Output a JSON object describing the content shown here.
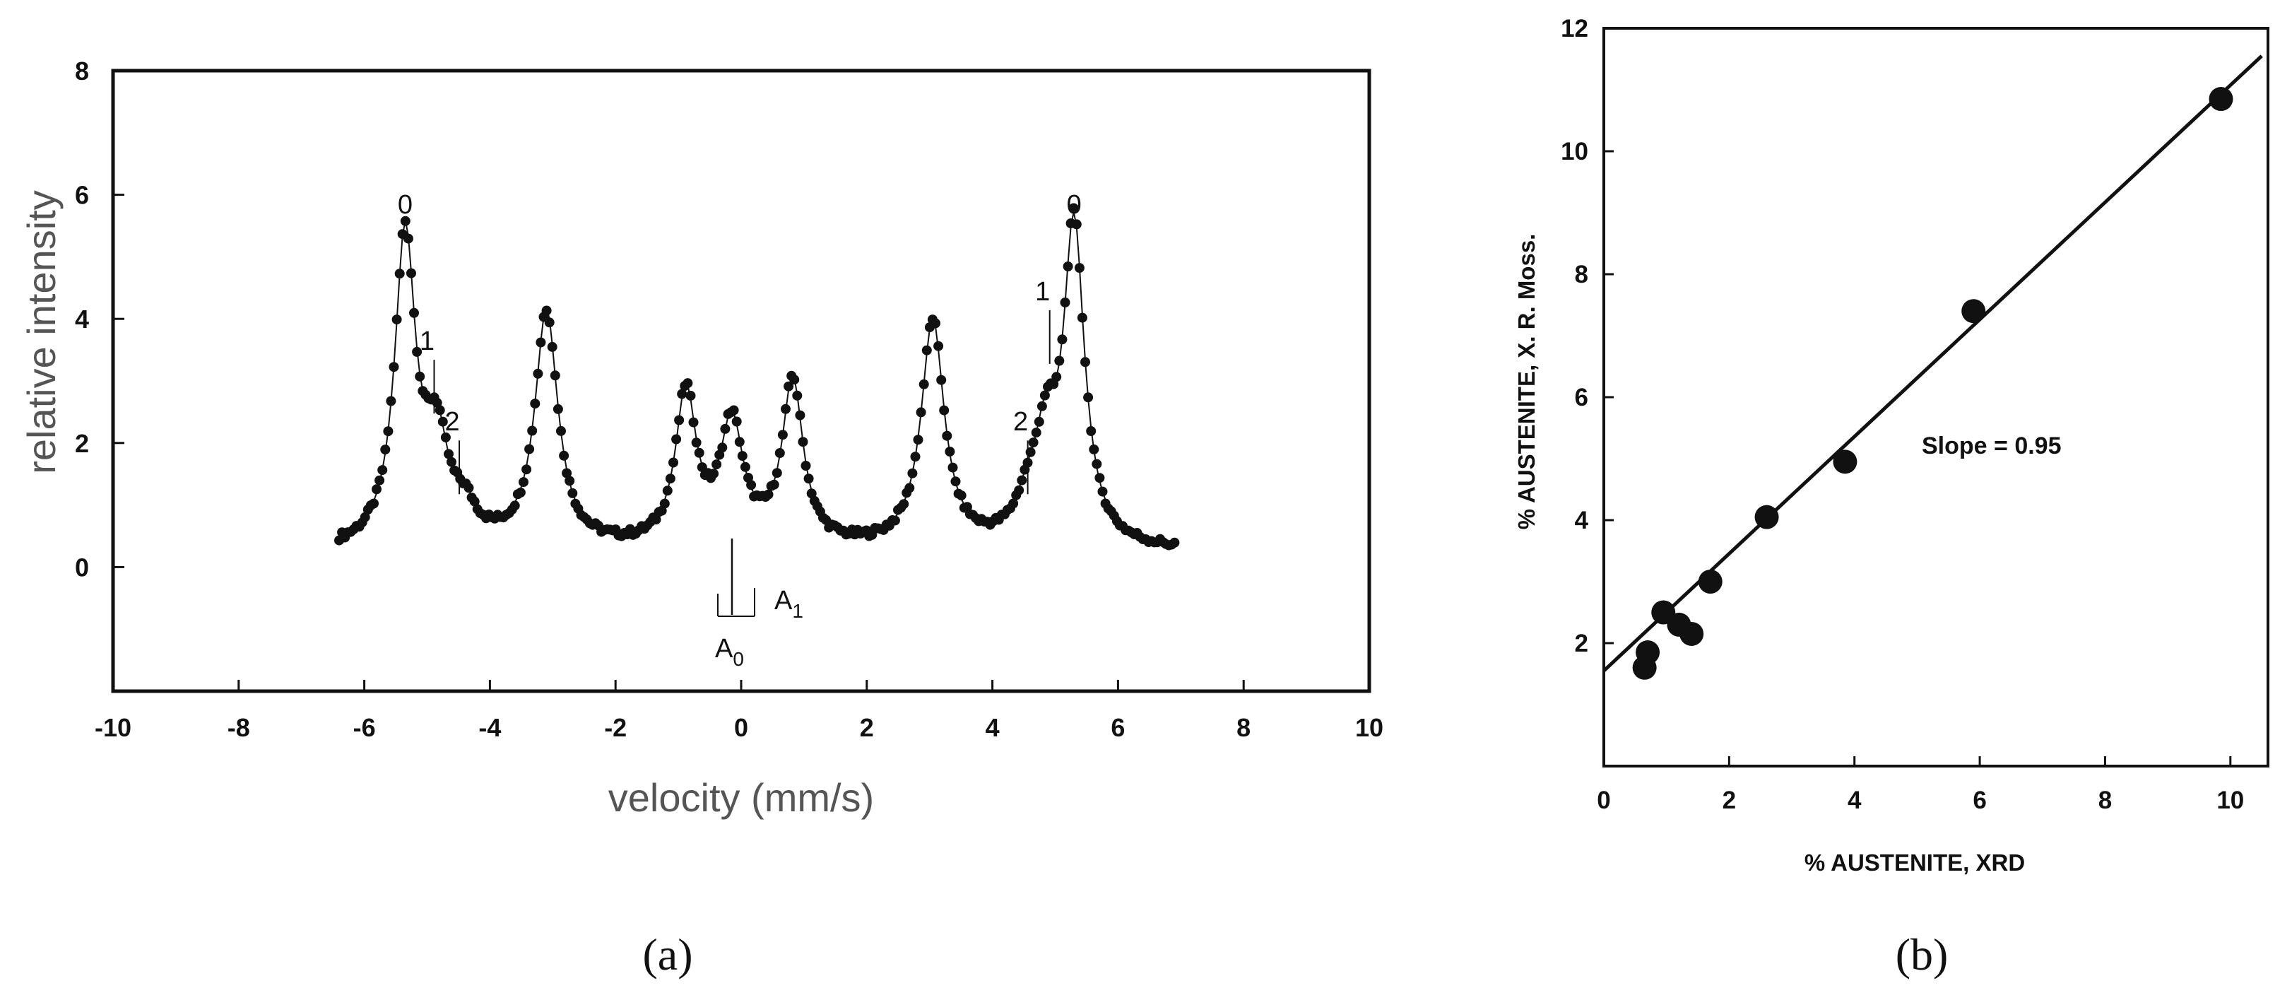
{
  "chart_data": [
    {
      "type": "scatter",
      "title": "",
      "xlabel": "velocity (mm/s)",
      "ylabel": "relative intensity",
      "xlim": [
        -10,
        10
      ],
      "ylim": [
        -2,
        8
      ],
      "xticks": [
        "-10",
        "-8",
        "-6",
        "-4",
        "-2",
        "0",
        "2",
        "4",
        "6",
        "8",
        "10"
      ],
      "yticks": [
        "0",
        "2",
        "4",
        "6",
        "8"
      ],
      "peaks": [
        {
          "center": -5.35,
          "amplitude": 5.0,
          "width": 0.2
        },
        {
          "center": -4.85,
          "amplitude": 1.6,
          "width": 0.22
        },
        {
          "center": -4.4,
          "amplitude": 0.45,
          "width": 0.22
        },
        {
          "center": -3.1,
          "amplitude": 3.8,
          "width": 0.22
        },
        {
          "center": -0.88,
          "amplitude": 2.45,
          "width": 0.2
        },
        {
          "center": -0.15,
          "amplitude": 1.95,
          "width": 0.22
        },
        {
          "center": 0.82,
          "amplitude": 2.65,
          "width": 0.2
        },
        {
          "center": 3.05,
          "amplitude": 3.65,
          "width": 0.22
        },
        {
          "center": 4.55,
          "amplitude": 0.45,
          "width": 0.22
        },
        {
          "center": 4.85,
          "amplitude": 1.5,
          "width": 0.22
        },
        {
          "center": 5.3,
          "amplitude": 5.1,
          "width": 0.2
        }
      ],
      "baseline": 0.25,
      "velocity_range": [
        -6.4,
        6.9
      ],
      "annotations": [
        {
          "text": "0",
          "x": -5.35,
          "y": 5.7
        },
        {
          "text": "1",
          "x": -5.0,
          "y": 3.5
        },
        {
          "text": "2",
          "x": -4.6,
          "y": 2.2
        },
        {
          "text": "1",
          "x": 4.8,
          "y": 4.3
        },
        {
          "text": "2",
          "x": 4.45,
          "y": 2.2
        },
        {
          "text": "0",
          "x": 5.3,
          "y": 5.7
        }
      ],
      "marker_label_a0": "A",
      "marker_label_a0_sub": "0",
      "marker_label_a1": "A",
      "marker_label_a1_sub": "1",
      "caption": "(a)"
    },
    {
      "type": "scatter",
      "title": "",
      "xlabel": "% AUSTENITE, XRD",
      "ylabel": "% AUSTENITE, X. R. Moss.",
      "xlim": [
        0,
        10.6
      ],
      "ylim": [
        0,
        12
      ],
      "xticks": [
        "0",
        "2",
        "4",
        "6",
        "8",
        "10"
      ],
      "yticks": [
        "2",
        "4",
        "6",
        "8",
        "10",
        "12"
      ],
      "points": [
        {
          "x": 0.65,
          "y": 1.6
        },
        {
          "x": 0.7,
          "y": 1.85
        },
        {
          "x": 0.95,
          "y": 2.5
        },
        {
          "x": 1.2,
          "y": 2.3
        },
        {
          "x": 1.4,
          "y": 2.15
        },
        {
          "x": 1.7,
          "y": 3.0
        },
        {
          "x": 2.6,
          "y": 4.05
        },
        {
          "x": 3.85,
          "y": 4.95
        },
        {
          "x": 5.9,
          "y": 7.4
        },
        {
          "x": 9.85,
          "y": 10.85
        }
      ],
      "fit_line": {
        "x": [
          0,
          10.5
        ],
        "y": [
          1.55,
          11.55
        ]
      },
      "annotation": "Slope = 0.95",
      "caption": "(b)"
    }
  ]
}
